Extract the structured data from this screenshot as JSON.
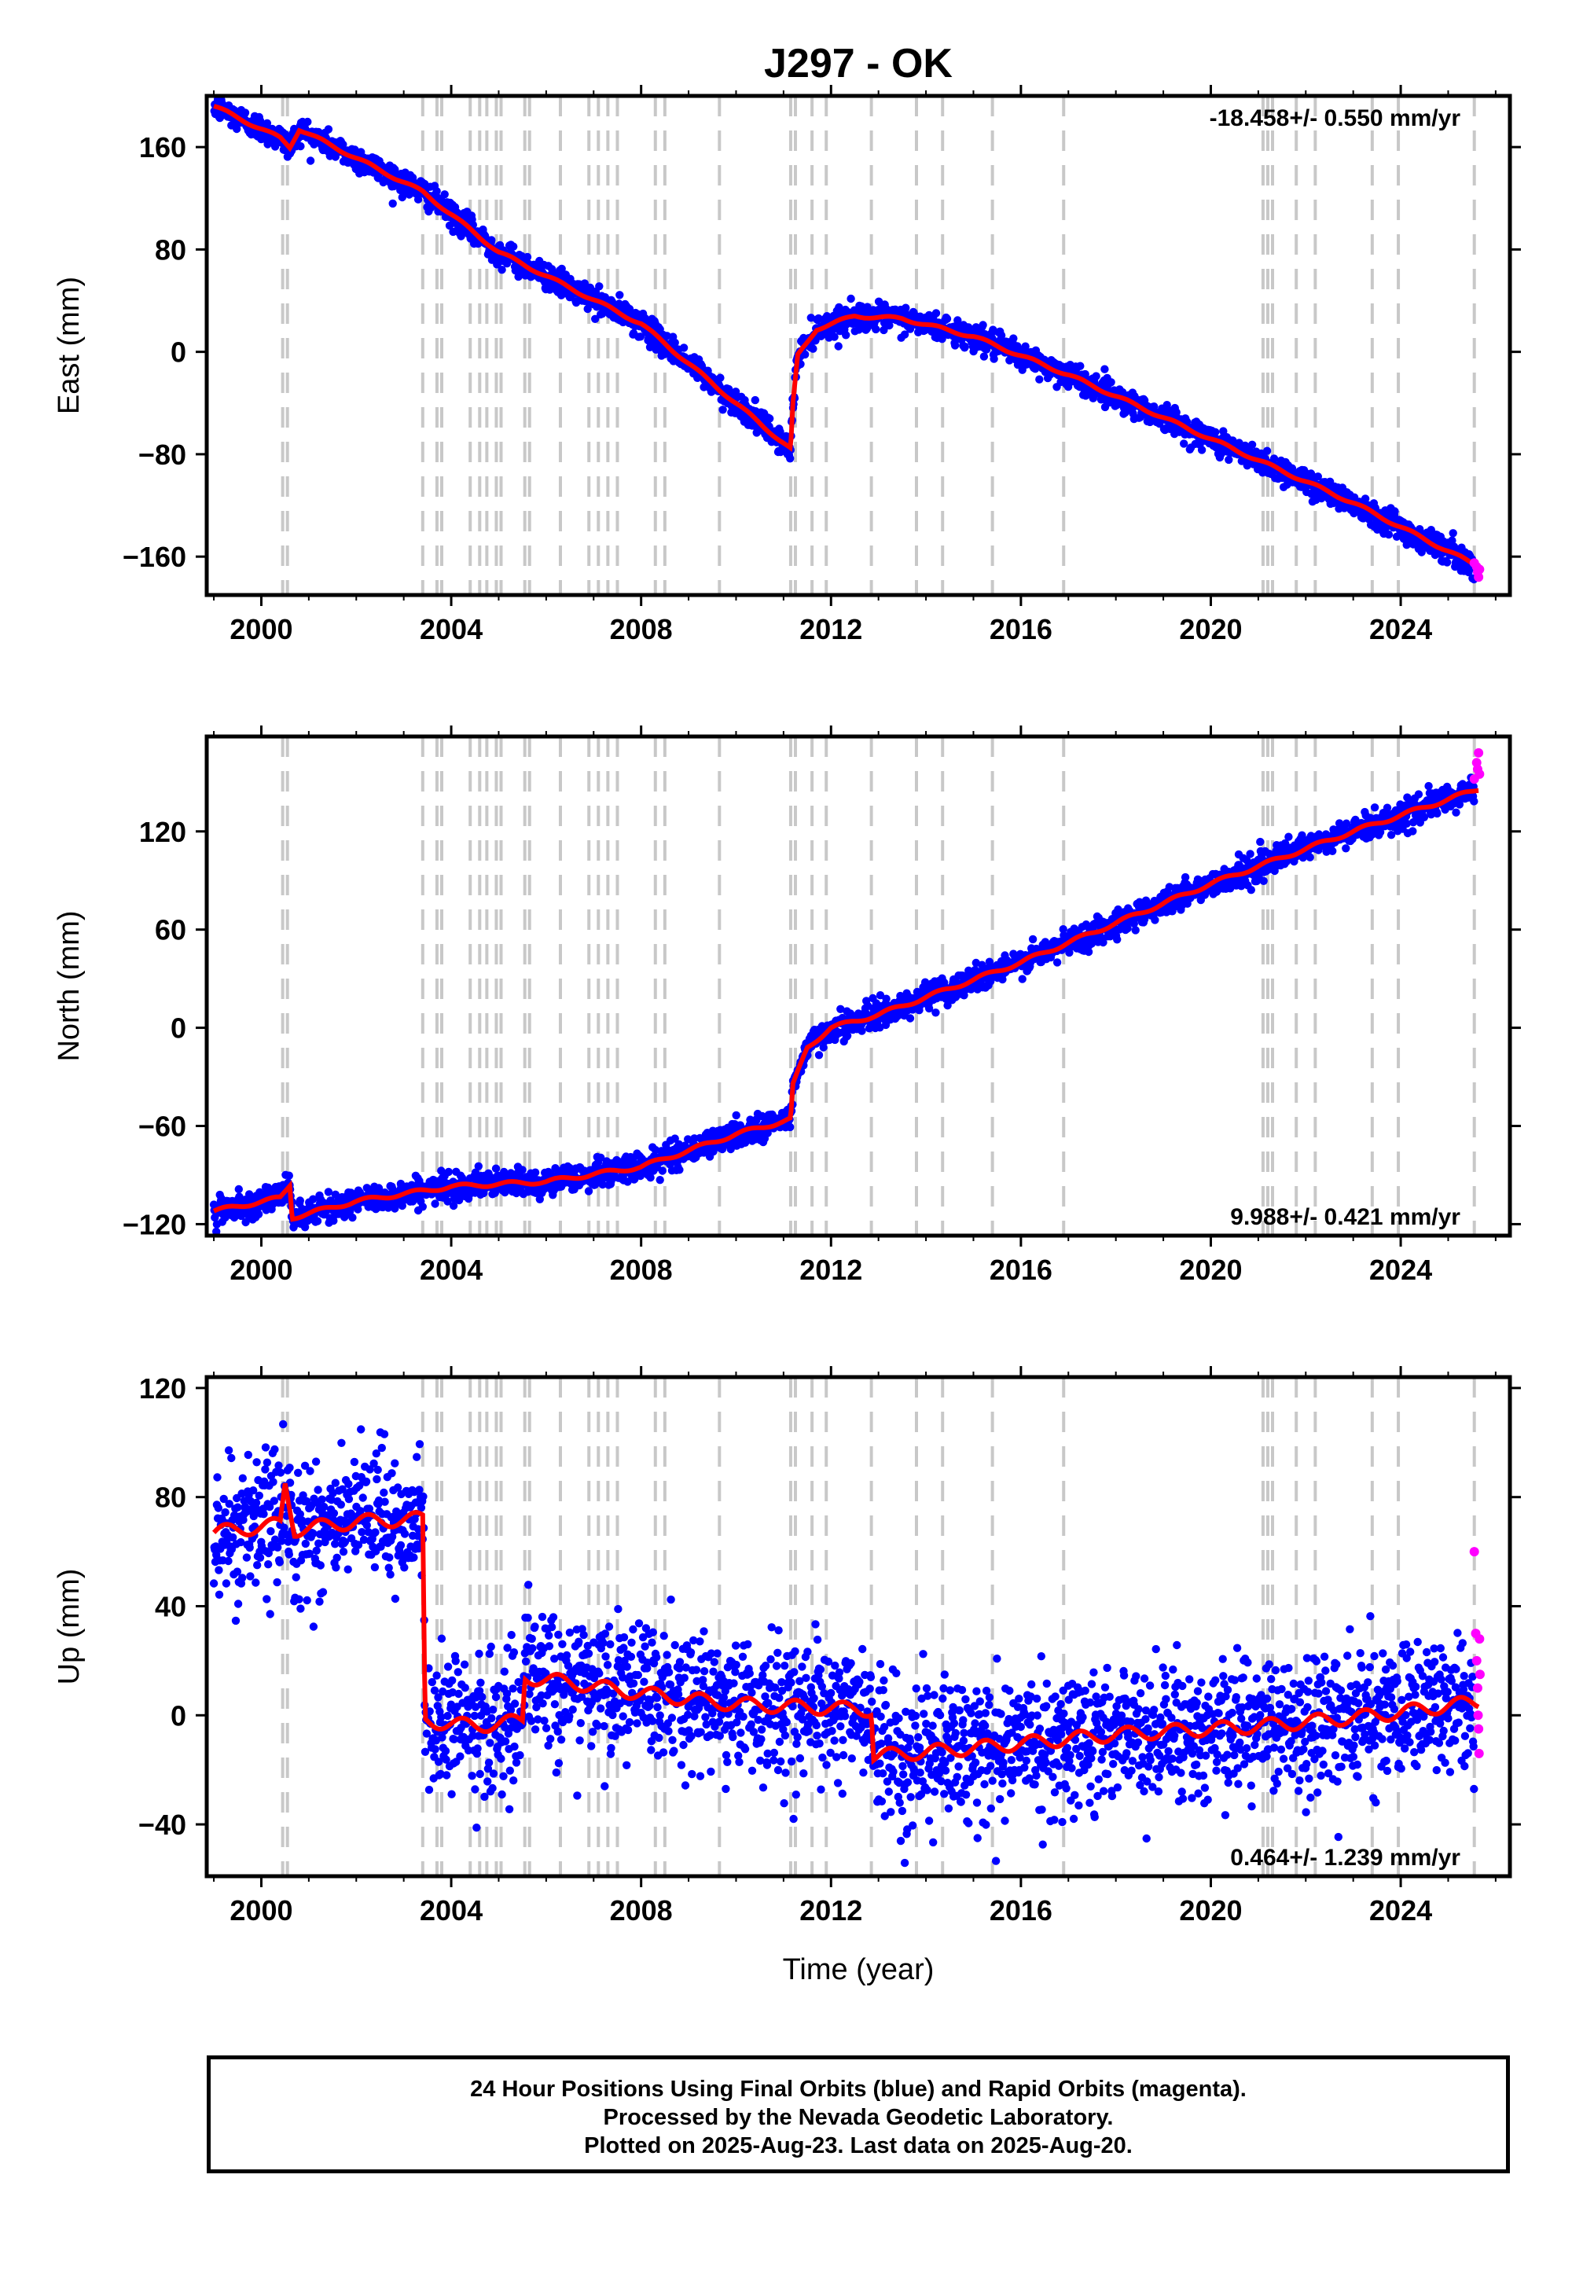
{
  "title": "J297 - OK",
  "colors": {
    "final": "#0000ff",
    "rapid": "#ff00ff",
    "model": "#ff0000",
    "event_line": "#c8c8c8"
  },
  "x_ticks": [
    "2000",
    "2004",
    "2008",
    "2012",
    "2016",
    "2020",
    "2024"
  ],
  "x_label": "Time (year)",
  "event_lines": [
    2000.45,
    2000.55,
    2003.4,
    2003.7,
    2003.8,
    2004.4,
    2004.6,
    2004.75,
    2004.95,
    2005.05,
    2005.55,
    2005.65,
    2006.3,
    2006.9,
    2007.1,
    2007.3,
    2007.5,
    2008.3,
    2008.5,
    2009.65,
    2011.15,
    2011.25,
    2011.6,
    2011.9,
    2012.85,
    2013.8,
    2014.35,
    2015.4,
    2016.9,
    2021.1,
    2021.2,
    2021.3,
    2021.8,
    2022.2,
    2023.4,
    2023.95,
    2025.55
  ],
  "caption": {
    "line1": "24 Hour Positions Using Final Orbits (blue) and Rapid Orbits (magenta).",
    "line2": "Processed by the Nevada Geodetic Laboratory.",
    "line3": "Plotted on 2025-Aug-23. Last data on 2025-Aug-20."
  },
  "chart_data": [
    {
      "type": "scatter",
      "name": "East",
      "ylabel": "East (mm)",
      "velocity_label": "-18.458+/- 0.550 mm/yr",
      "xlim": [
        1998.85,
        2026.3
      ],
      "ylim": [
        -190,
        200
      ],
      "y_ticks": [
        "160",
        "80",
        "0",
        "−80",
        "−160"
      ],
      "y_tick_values": [
        160,
        80,
        0,
        -80,
        -160
      ],
      "noise_sd": 5,
      "model": [
        [
          1999.0,
          192
        ],
        [
          2000.4,
          167
        ],
        [
          2000.6,
          160
        ],
        [
          2000.8,
          174
        ],
        [
          2003.4,
          125
        ],
        [
          2005.0,
          78
        ],
        [
          2008.0,
          22
        ],
        [
          2011.15,
          -76
        ],
        [
          2011.2,
          -40
        ],
        [
          2011.3,
          -3
        ],
        [
          2011.7,
          18
        ],
        [
          2012.5,
          28
        ],
        [
          2013.5,
          26
        ],
        [
          2015.0,
          12
        ],
        [
          2017.0,
          -18
        ],
        [
          2020.0,
          -68
        ],
        [
          2023.0,
          -118
        ],
        [
          2025.65,
          -168
        ]
      ],
      "rapid": [
        [
          2025.55,
          -165
        ],
        [
          2025.6,
          -168
        ],
        [
          2025.62,
          -172
        ],
        [
          2025.64,
          -176
        ],
        [
          2025.66,
          -170
        ]
      ]
    },
    {
      "type": "scatter",
      "name": "North",
      "ylabel": "North (mm)",
      "velocity_label": "9.988+/- 0.421 mm/yr",
      "xlim": [
        1998.85,
        2026.3
      ],
      "ylim": [
        -127,
        178
      ],
      "y_ticks": [
        "120",
        "60",
        "0",
        "−60",
        "−120"
      ],
      "y_tick_values": [
        120,
        60,
        0,
        -60,
        -120
      ],
      "noise_sd": 4,
      "model": [
        [
          1999.0,
          -112
        ],
        [
          2000.4,
          -104
        ],
        [
          2000.6,
          -96
        ],
        [
          2000.65,
          -116
        ],
        [
          2002.0,
          -106
        ],
        [
          2004.0,
          -97
        ],
        [
          2006.0,
          -94
        ],
        [
          2008.0,
          -85
        ],
        [
          2010.0,
          -65
        ],
        [
          2011.15,
          -56
        ],
        [
          2011.2,
          -35
        ],
        [
          2011.5,
          -12
        ],
        [
          2012.0,
          0
        ],
        [
          2013.0,
          8
        ],
        [
          2016.0,
          40
        ],
        [
          2020.0,
          88
        ],
        [
          2023.0,
          120
        ],
        [
          2025.65,
          146
        ]
      ],
      "rapid": [
        [
          2025.55,
          152
        ],
        [
          2025.6,
          162
        ],
        [
          2025.62,
          158
        ],
        [
          2025.64,
          168
        ],
        [
          2025.66,
          155
        ]
      ]
    },
    {
      "type": "scatter",
      "name": "Up",
      "ylabel": "Up (mm)",
      "velocity_label": "0.464+/- 1.239 mm/yr",
      "xlim": [
        1998.85,
        2026.3
      ],
      "ylim": [
        -59,
        124
      ],
      "y_ticks": [
        "120",
        "80",
        "40",
        "0",
        "−40"
      ],
      "y_tick_values": [
        120,
        80,
        40,
        0,
        -40
      ],
      "noise_sd": 12,
      "model": [
        [
          1999.0,
          67
        ],
        [
          2000.4,
          70
        ],
        [
          2000.5,
          85
        ],
        [
          2000.7,
          68
        ],
        [
          2002.0,
          71
        ],
        [
          2003.4,
          72
        ],
        [
          2003.45,
          -2
        ],
        [
          2004.5,
          -4
        ],
        [
          2005.5,
          -2
        ],
        [
          2005.55,
          14
        ],
        [
          2006.5,
          12
        ],
        [
          2008.0,
          8
        ],
        [
          2010.0,
          4
        ],
        [
          2012.85,
          2
        ],
        [
          2012.9,
          -15
        ],
        [
          2015.0,
          -12
        ],
        [
          2018.0,
          -7
        ],
        [
          2021.0,
          -4
        ],
        [
          2023.5,
          0
        ],
        [
          2025.65,
          5
        ]
      ],
      "rapid": [
        [
          2025.55,
          60
        ],
        [
          2025.58,
          30
        ],
        [
          2025.6,
          20
        ],
        [
          2025.62,
          10
        ],
        [
          2025.63,
          0
        ],
        [
          2025.64,
          -5
        ],
        [
          2025.65,
          -14
        ],
        [
          2025.66,
          28
        ],
        [
          2025.67,
          15
        ]
      ]
    }
  ]
}
